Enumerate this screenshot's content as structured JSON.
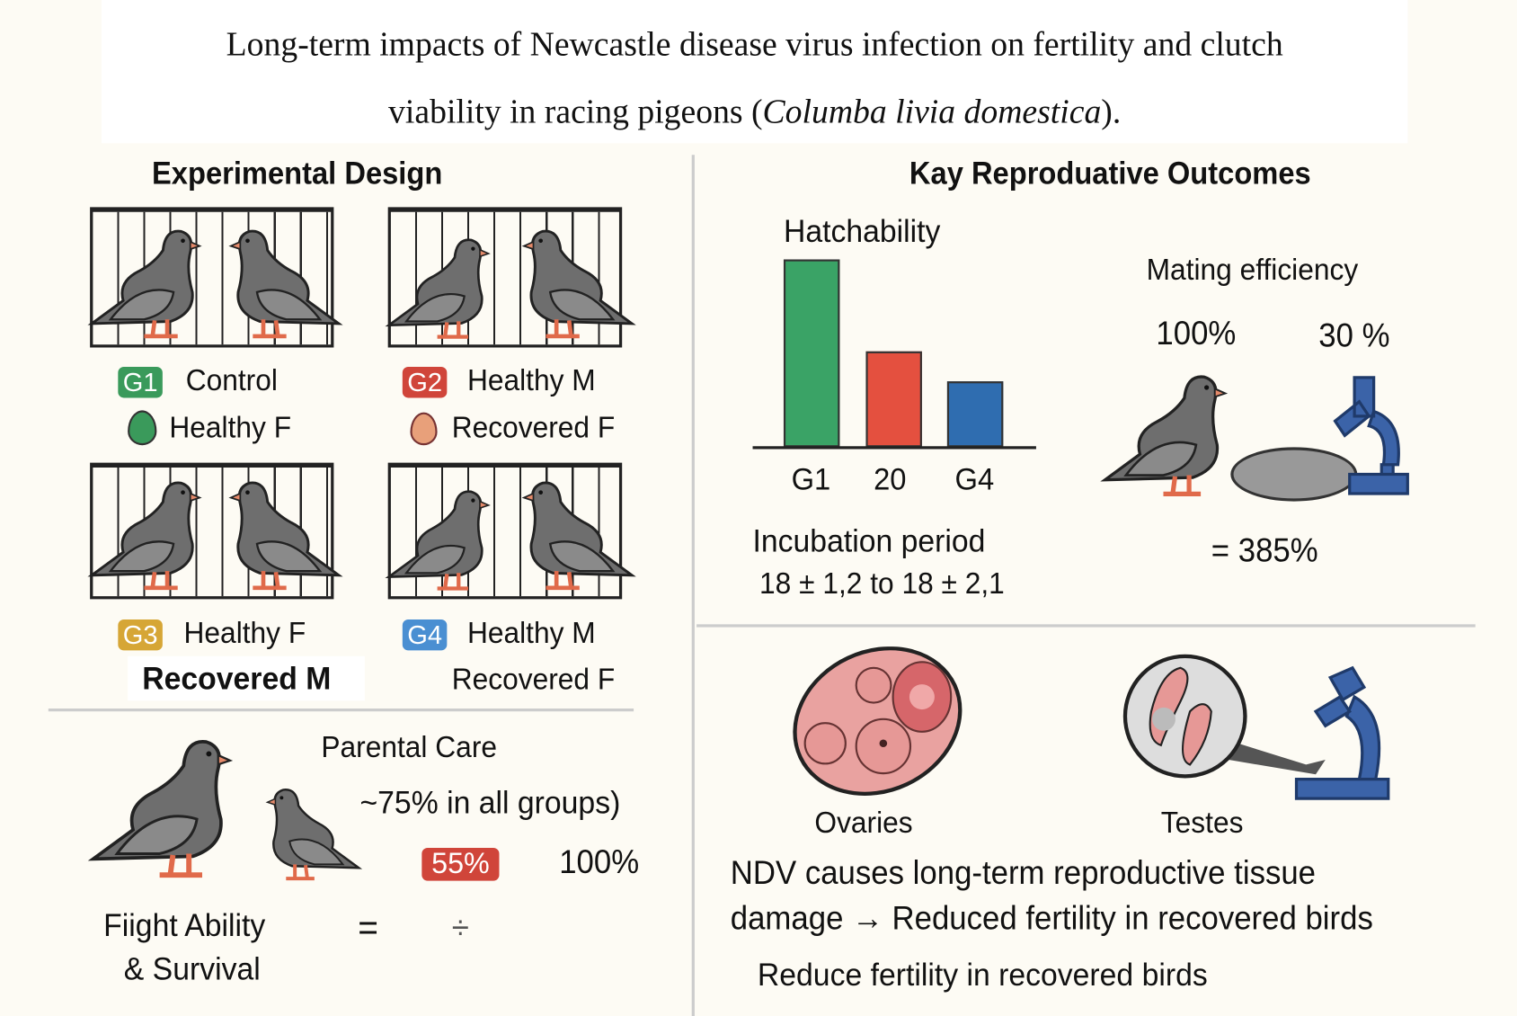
{
  "title": {
    "line1": "Long-term impacts of Newcastle disease virus infection on fertility and clutch",
    "line2_prefix": "viability in racing pigeons (",
    "line2_italic": "Columba livia domestica",
    "line2_suffix": ")."
  },
  "design": {
    "heading": "Experimental Design",
    "groups": [
      {
        "badge": "G1",
        "color": "#3a9a5b",
        "line1": "Control",
        "line2": "Healthy F",
        "egg_color": "#3a9a5b"
      },
      {
        "badge": "G2",
        "color": "#d0453a",
        "line1": "Healthy M",
        "line2": "Recovered F",
        "egg_color": "#e0875a"
      },
      {
        "badge": "G3",
        "color": "#d6a636",
        "line1": "Healthy F",
        "line2": "Recovered M"
      },
      {
        "badge": "G4",
        "color": "#4a8fd2",
        "line1": "Healthy M",
        "line2": "Recovered F"
      }
    ]
  },
  "care": {
    "heading": "Parental Care",
    "note": "~75% in all groups)",
    "badge": "55%",
    "badge_color": "#d0453a",
    "value": "100%",
    "flight1": "Fiight Ability",
    "flight2": "& Survival",
    "eq": "=",
    "div": "÷"
  },
  "outcomes": {
    "heading": "Kay Reproduative Outcomes",
    "hatch": {
      "label": "Hatchability",
      "bars": [
        {
          "label": "G1",
          "color": "#3aa366",
          "relative_height": 1.0
        },
        {
          "label": "20",
          "color": "#e4503f",
          "relative_height": 0.51
        },
        {
          "label": "G4",
          "color": "#2f6db0",
          "relative_height": 0.35
        }
      ]
    },
    "incubation": {
      "label": "Incubation period",
      "value": "18 ± 1,2 to 18 ± 2,1"
    },
    "mating": {
      "label": "Mating efficiency",
      "v1": "100%",
      "v2": "30 %",
      "result": "=  385%"
    }
  },
  "tissue": {
    "ovaries": "Ovaries",
    "testes": "Testes",
    "text1": "NDV causes long-term reproductive tissue",
    "text2": "damage → Reduced fertility in recovered birds",
    "text3": "Reduce fertility in recovered birds"
  }
}
